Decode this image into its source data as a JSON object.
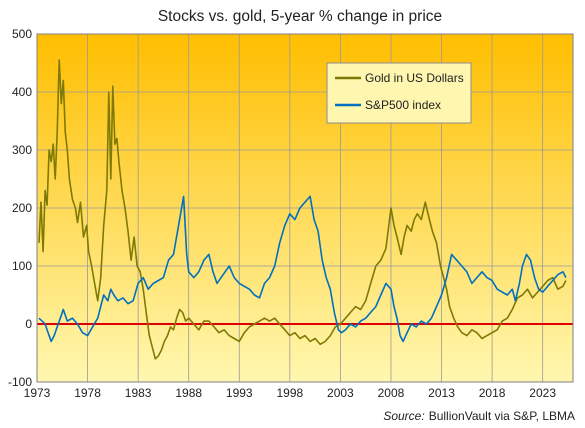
{
  "chart_data": {
    "type": "line",
    "title": "Stocks vs. gold, 5-year % change in price",
    "source_prefix": "Source:",
    "source_text": "BullionVault via S&P, LBMA",
    "ylim": [
      -100,
      500
    ],
    "yticks": [
      "-100",
      "0",
      "100",
      "200",
      "300",
      "400",
      "500"
    ],
    "xlim": [
      1973,
      2026
    ],
    "xticks": [
      "1973",
      "1978",
      "1983",
      "1988",
      "1993",
      "1998",
      "2003",
      "2008",
      "2013",
      "2018",
      "2023"
    ],
    "grid": true,
    "legend_position": "top-right",
    "zero_line_color": "#e00000",
    "background_gradient": [
      "#ffbe00",
      "#fff7b0"
    ],
    "series": [
      {
        "name": "Gold in US Dollars",
        "color": "#7f7a06",
        "points": [
          [
            1973.2,
            140
          ],
          [
            1973.4,
            210
          ],
          [
            1973.6,
            125
          ],
          [
            1973.8,
            230
          ],
          [
            1974.0,
            205
          ],
          [
            1974.2,
            300
          ],
          [
            1974.4,
            280
          ],
          [
            1974.6,
            310
          ],
          [
            1974.8,
            250
          ],
          [
            1975.0,
            330
          ],
          [
            1975.2,
            455
          ],
          [
            1975.4,
            380
          ],
          [
            1975.6,
            420
          ],
          [
            1975.8,
            330
          ],
          [
            1976.0,
            300
          ],
          [
            1976.2,
            250
          ],
          [
            1976.5,
            215
          ],
          [
            1976.8,
            200
          ],
          [
            1977.0,
            175
          ],
          [
            1977.3,
            210
          ],
          [
            1977.6,
            150
          ],
          [
            1977.9,
            170
          ],
          [
            1978.1,
            125
          ],
          [
            1978.4,
            100
          ],
          [
            1978.7,
            70
          ],
          [
            1979.0,
            40
          ],
          [
            1979.3,
            80
          ],
          [
            1979.6,
            170
          ],
          [
            1979.9,
            230
          ],
          [
            1980.1,
            400
          ],
          [
            1980.3,
            250
          ],
          [
            1980.5,
            410
          ],
          [
            1980.7,
            310
          ],
          [
            1980.9,
            320
          ],
          [
            1981.1,
            280
          ],
          [
            1981.4,
            230
          ],
          [
            1981.7,
            200
          ],
          [
            1982.0,
            160
          ],
          [
            1982.3,
            110
          ],
          [
            1982.6,
            150
          ],
          [
            1982.9,
            100
          ],
          [
            1983.2,
            90
          ],
          [
            1983.5,
            60
          ],
          [
            1983.8,
            20
          ],
          [
            1984.1,
            -20
          ],
          [
            1984.4,
            -40
          ],
          [
            1984.7,
            -60
          ],
          [
            1985.0,
            -55
          ],
          [
            1985.3,
            -45
          ],
          [
            1985.6,
            -30
          ],
          [
            1985.9,
            -20
          ],
          [
            1986.2,
            -5
          ],
          [
            1986.5,
            -10
          ],
          [
            1986.8,
            10
          ],
          [
            1987.1,
            25
          ],
          [
            1987.4,
            20
          ],
          [
            1987.7,
            5
          ],
          [
            1988.0,
            10
          ],
          [
            1988.5,
            0
          ],
          [
            1989.0,
            -10
          ],
          [
            1989.5,
            5
          ],
          [
            1990.0,
            5
          ],
          [
            1990.5,
            -5
          ],
          [
            1991.0,
            -15
          ],
          [
            1991.5,
            -10
          ],
          [
            1992.0,
            -20
          ],
          [
            1992.5,
            -25
          ],
          [
            1993.0,
            -30
          ],
          [
            1993.5,
            -15
          ],
          [
            1994.0,
            -5
          ],
          [
            1994.5,
            0
          ],
          [
            1995.0,
            5
          ],
          [
            1995.5,
            10
          ],
          [
            1996.0,
            5
          ],
          [
            1996.5,
            10
          ],
          [
            1997.0,
            0
          ],
          [
            1997.5,
            -10
          ],
          [
            1998.0,
            -20
          ],
          [
            1998.5,
            -15
          ],
          [
            1999.0,
            -25
          ],
          [
            1999.5,
            -20
          ],
          [
            2000.0,
            -30
          ],
          [
            2000.5,
            -25
          ],
          [
            2001.0,
            -35
          ],
          [
            2001.5,
            -30
          ],
          [
            2002.0,
            -20
          ],
          [
            2002.5,
            -5
          ],
          [
            2003.0,
            0
          ],
          [
            2003.5,
            10
          ],
          [
            2004.0,
            20
          ],
          [
            2004.5,
            30
          ],
          [
            2005.0,
            25
          ],
          [
            2005.5,
            40
          ],
          [
            2006.0,
            70
          ],
          [
            2006.5,
            100
          ],
          [
            2007.0,
            110
          ],
          [
            2007.5,
            130
          ],
          [
            2008.0,
            200
          ],
          [
            2008.3,
            170
          ],
          [
            2008.6,
            150
          ],
          [
            2009.0,
            120
          ],
          [
            2009.3,
            150
          ],
          [
            2009.6,
            170
          ],
          [
            2010.0,
            160
          ],
          [
            2010.3,
            180
          ],
          [
            2010.6,
            190
          ],
          [
            2011.0,
            180
          ],
          [
            2011.4,
            210
          ],
          [
            2011.8,
            180
          ],
          [
            2012.1,
            160
          ],
          [
            2012.5,
            140
          ],
          [
            2012.9,
            100
          ],
          [
            2013.2,
            80
          ],
          [
            2013.5,
            60
          ],
          [
            2013.8,
            30
          ],
          [
            2014.2,
            10
          ],
          [
            2014.6,
            -5
          ],
          [
            2015.0,
            -15
          ],
          [
            2015.5,
            -20
          ],
          [
            2016.0,
            -10
          ],
          [
            2016.5,
            -15
          ],
          [
            2017.0,
            -25
          ],
          [
            2017.5,
            -20
          ],
          [
            2018.0,
            -15
          ],
          [
            2018.5,
            -10
          ],
          [
            2019.0,
            5
          ],
          [
            2019.5,
            10
          ],
          [
            2020.0,
            25
          ],
          [
            2020.5,
            45
          ],
          [
            2021.0,
            50
          ],
          [
            2021.5,
            60
          ],
          [
            2022.0,
            45
          ],
          [
            2022.5,
            55
          ],
          [
            2023.0,
            65
          ],
          [
            2023.5,
            75
          ],
          [
            2024.0,
            80
          ],
          [
            2024.5,
            60
          ],
          [
            2025.0,
            65
          ],
          [
            2025.3,
            75
          ]
        ]
      },
      {
        "name": "S&P500 index",
        "color": "#0070c0",
        "points": [
          [
            1973.2,
            10
          ],
          [
            1973.5,
            5
          ],
          [
            1973.8,
            0
          ],
          [
            1974.1,
            -15
          ],
          [
            1974.4,
            -30
          ],
          [
            1974.7,
            -20
          ],
          [
            1975.0,
            -5
          ],
          [
            1975.3,
            10
          ],
          [
            1975.6,
            25
          ],
          [
            1976.0,
            5
          ],
          [
            1976.5,
            10
          ],
          [
            1977.0,
            0
          ],
          [
            1977.5,
            -15
          ],
          [
            1978.0,
            -20
          ],
          [
            1978.5,
            -5
          ],
          [
            1979.0,
            10
          ],
          [
            1979.3,
            30
          ],
          [
            1979.6,
            50
          ],
          [
            1980.0,
            40
          ],
          [
            1980.3,
            60
          ],
          [
            1980.6,
            50
          ],
          [
            1981.0,
            40
          ],
          [
            1981.5,
            45
          ],
          [
            1982.0,
            35
          ],
          [
            1982.5,
            40
          ],
          [
            1983.0,
            70
          ],
          [
            1983.5,
            80
          ],
          [
            1984.0,
            60
          ],
          [
            1984.5,
            70
          ],
          [
            1985.0,
            75
          ],
          [
            1985.5,
            80
          ],
          [
            1986.0,
            110
          ],
          [
            1986.5,
            120
          ],
          [
            1987.0,
            170
          ],
          [
            1987.3,
            200
          ],
          [
            1987.5,
            220
          ],
          [
            1987.8,
            120
          ],
          [
            1988.0,
            90
          ],
          [
            1988.5,
            80
          ],
          [
            1989.0,
            90
          ],
          [
            1989.5,
            110
          ],
          [
            1990.0,
            120
          ],
          [
            1990.4,
            90
          ],
          [
            1990.8,
            70
          ],
          [
            1991.2,
            80
          ],
          [
            1991.6,
            90
          ],
          [
            1992.0,
            100
          ],
          [
            1992.5,
            80
          ],
          [
            1993.0,
            70
          ],
          [
            1993.5,
            65
          ],
          [
            1994.0,
            60
          ],
          [
            1994.5,
            50
          ],
          [
            1995.0,
            45
          ],
          [
            1995.5,
            70
          ],
          [
            1996.0,
            80
          ],
          [
            1996.5,
            100
          ],
          [
            1997.0,
            140
          ],
          [
            1997.5,
            170
          ],
          [
            1998.0,
            190
          ],
          [
            1998.5,
            180
          ],
          [
            1999.0,
            200
          ],
          [
            1999.5,
            210
          ],
          [
            2000.0,
            220
          ],
          [
            2000.4,
            180
          ],
          [
            2000.8,
            160
          ],
          [
            2001.2,
            110
          ],
          [
            2001.6,
            80
          ],
          [
            2002.0,
            60
          ],
          [
            2002.4,
            20
          ],
          [
            2002.8,
            -10
          ],
          [
            2003.1,
            -15
          ],
          [
            2003.5,
            -10
          ],
          [
            2004.0,
            0
          ],
          [
            2004.5,
            -5
          ],
          [
            2005.0,
            5
          ],
          [
            2005.5,
            10
          ],
          [
            2006.0,
            20
          ],
          [
            2006.5,
            30
          ],
          [
            2007.0,
            50
          ],
          [
            2007.5,
            70
          ],
          [
            2008.0,
            60
          ],
          [
            2008.3,
            30
          ],
          [
            2008.6,
            10
          ],
          [
            2008.9,
            -20
          ],
          [
            2009.2,
            -30
          ],
          [
            2009.6,
            -15
          ],
          [
            2010.0,
            0
          ],
          [
            2010.5,
            -5
          ],
          [
            2011.0,
            5
          ],
          [
            2011.5,
            0
          ],
          [
            2012.0,
            10
          ],
          [
            2012.5,
            30
          ],
          [
            2013.0,
            50
          ],
          [
            2013.5,
            80
          ],
          [
            2014.0,
            120
          ],
          [
            2014.5,
            110
          ],
          [
            2015.0,
            100
          ],
          [
            2015.5,
            90
          ],
          [
            2016.0,
            70
          ],
          [
            2016.5,
            80
          ],
          [
            2017.0,
            90
          ],
          [
            2017.5,
            80
          ],
          [
            2018.0,
            75
          ],
          [
            2018.5,
            60
          ],
          [
            2019.0,
            55
          ],
          [
            2019.5,
            50
          ],
          [
            2020.0,
            60
          ],
          [
            2020.3,
            40
          ],
          [
            2020.7,
            70
          ],
          [
            2021.0,
            100
          ],
          [
            2021.4,
            120
          ],
          [
            2021.8,
            110
          ],
          [
            2022.2,
            80
          ],
          [
            2022.6,
            60
          ],
          [
            2023.0,
            55
          ],
          [
            2023.5,
            65
          ],
          [
            2024.0,
            75
          ],
          [
            2024.5,
            85
          ],
          [
            2025.0,
            90
          ],
          [
            2025.3,
            80
          ]
        ]
      }
    ]
  }
}
